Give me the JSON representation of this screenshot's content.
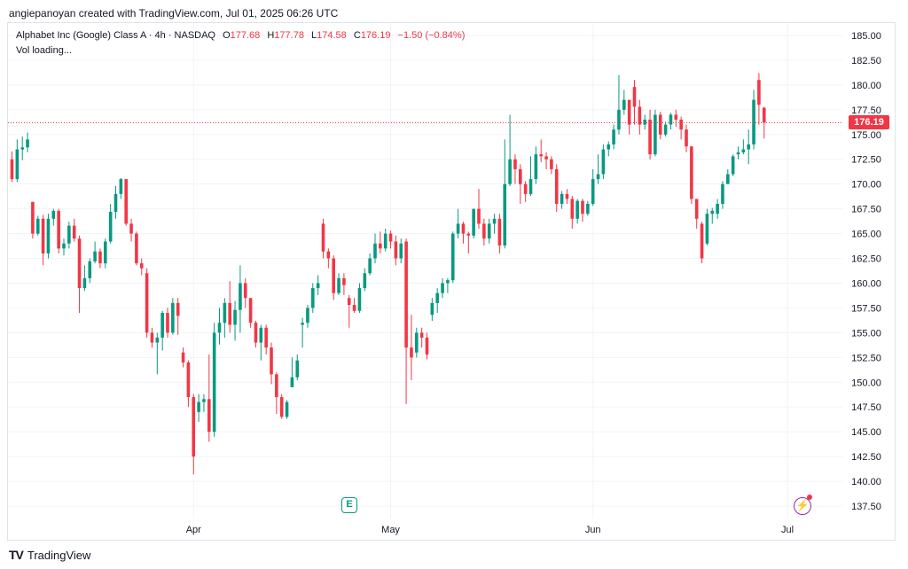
{
  "header": {
    "credit": "angiepanoyan created with TradingView.com, Jul 01, 2025 06:26 UTC"
  },
  "legend": {
    "symbol": "Alphabet Inc (Google) Class A · 4h · NASDAQ",
    "o_label": "O",
    "o_value": "177.68",
    "h_label": "H",
    "h_value": "177.78",
    "l_label": "L",
    "l_value": "174.58",
    "c_label": "C",
    "c_value": "176.19",
    "change": "−1.50 (−0.84%)",
    "vol": "Vol loading..."
  },
  "last_price": "176.19",
  "events": {
    "earnings_icon": "E",
    "flash_icon": "lightning-icon"
  },
  "footer": {
    "brand": "TradingView",
    "logo": "TV"
  },
  "colors": {
    "up": "#089981",
    "down": "#f23645",
    "grid": "#f0f3fa",
    "text": "#131722"
  },
  "chart_data": {
    "type": "candlestick",
    "ylim": [
      136.25,
      186.25
    ],
    "y_ticks": [
      "185.00",
      "182.50",
      "180.00",
      "177.50",
      "175.00",
      "172.50",
      "170.00",
      "167.50",
      "165.00",
      "162.50",
      "160.00",
      "157.50",
      "155.00",
      "152.50",
      "150.00",
      "147.50",
      "145.00",
      "142.50",
      "140.00",
      "137.50"
    ],
    "x_ticks": [
      {
        "label": "Apr",
        "index": 35
      },
      {
        "label": "May",
        "index": 73
      },
      {
        "label": "Jun",
        "index": 112
      },
      {
        "label": "Jul",
        "index": 149.5
      }
    ],
    "last_price": 176.19,
    "candles": [
      [
        172.5,
        170.5,
        173.3,
        170.2
      ],
      [
        170.5,
        173.5,
        174.5,
        170.2
      ],
      [
        173.5,
        173.7,
        174.8,
        172.4
      ],
      [
        173.7,
        174.5,
        175.2,
        173.2
      ],
      [
        168.2,
        165.0,
        168.2,
        164.5
      ],
      [
        165.0,
        166.5,
        166.8,
        164.8
      ],
      [
        166.5,
        163.0,
        166.9,
        161.8
      ],
      [
        163.0,
        166.5,
        167.0,
        162.5
      ],
      [
        166.5,
        167.3,
        167.5,
        165.8
      ],
      [
        167.3,
        163.5,
        167.5,
        163.0
      ],
      [
        163.5,
        164.0,
        164.5,
        162.8
      ],
      [
        164.0,
        165.8,
        166.2,
        163.5
      ],
      [
        165.8,
        164.5,
        166.5,
        164.2
      ],
      [
        164.5,
        159.5,
        164.8,
        157.0
      ],
      [
        159.5,
        160.5,
        161.8,
        159.2
      ],
      [
        160.5,
        162.2,
        162.5,
        160.0
      ],
      [
        162.2,
        163.2,
        164.2,
        162.0
      ],
      [
        163.2,
        162.0,
        163.5,
        161.5
      ],
      [
        162.0,
        164.2,
        164.5,
        161.5
      ],
      [
        164.2,
        167.2,
        168.0,
        164.0
      ],
      [
        167.2,
        169.0,
        169.8,
        166.5
      ],
      [
        169.0,
        170.5,
        170.6,
        168.5
      ],
      [
        170.5,
        166.0,
        170.5,
        165.8
      ],
      [
        166.0,
        165.0,
        166.5,
        164.2
      ],
      [
        165.0,
        162.0,
        165.2,
        161.8
      ],
      [
        162.0,
        161.5,
        162.5,
        160.8
      ],
      [
        161.0,
        155.0,
        161.5,
        154.5
      ],
      [
        155.0,
        154.0,
        155.5,
        153.5
      ],
      [
        154.0,
        154.5,
        155.0,
        150.8
      ],
      [
        154.5,
        157.0,
        157.2,
        153.2
      ],
      [
        157.0,
        155.0,
        157.5,
        154.5
      ],
      [
        155.0,
        158.0,
        158.5,
        154.8
      ],
      [
        158.0,
        156.7,
        158.5,
        154.8
      ],
      [
        153.0,
        152.0,
        153.5,
        151.5
      ],
      [
        152.0,
        148.5,
        152.2,
        147.5
      ],
      [
        148.5,
        142.5,
        148.8,
        140.7
      ],
      [
        147.0,
        148.0,
        148.8,
        146.0
      ],
      [
        148.0,
        148.3,
        148.8,
        147.0
      ],
      [
        148.3,
        145.0,
        152.8,
        144.0
      ],
      [
        145.0,
        155.0,
        156.0,
        144.5
      ],
      [
        155.0,
        156.0,
        157.5,
        153.8
      ],
      [
        156.0,
        158.0,
        158.5,
        154.5
      ],
      [
        158.0,
        155.8,
        160.2,
        155.0
      ],
      [
        155.8,
        157.3,
        158.2,
        154.2
      ],
      [
        157.3,
        160.0,
        161.8,
        155.0
      ],
      [
        160.0,
        158.5,
        160.5,
        157.5
      ],
      [
        158.5,
        156.0,
        158.5,
        155.5
      ],
      [
        156.0,
        154.0,
        156.2,
        153.5
      ],
      [
        154.0,
        155.5,
        155.8,
        152.2
      ],
      [
        155.5,
        153.5,
        155.8,
        152.8
      ],
      [
        153.5,
        150.8,
        154.0,
        149.8
      ],
      [
        150.8,
        148.5,
        151.0,
        146.8
      ],
      [
        148.5,
        146.5,
        148.8,
        146.3
      ],
      [
        146.5,
        148.0,
        148.2,
        146.3
      ],
      [
        149.5,
        150.5,
        152.5,
        149.5
      ],
      [
        150.5,
        152.2,
        152.8,
        150.2
      ],
      [
        155.8,
        156.0,
        156.5,
        153.5
      ],
      [
        156.0,
        157.5,
        157.8,
        155.5
      ],
      [
        157.5,
        159.5,
        160.0,
        157.0
      ],
      [
        159.5,
        160.0,
        160.8,
        158.8
      ],
      [
        166.0,
        163.2,
        166.5,
        162.5
      ],
      [
        163.2,
        162.5,
        163.5,
        161.5
      ],
      [
        162.5,
        159.0,
        162.8,
        158.3
      ],
      [
        159.0,
        160.5,
        161.0,
        158.8
      ],
      [
        160.5,
        159.8,
        161.0,
        158.8
      ],
      [
        158.5,
        157.8,
        158.8,
        155.5
      ],
      [
        157.8,
        157.2,
        158.5,
        157.0
      ],
      [
        157.2,
        159.5,
        160.0,
        157.0
      ],
      [
        159.5,
        161.0,
        161.5,
        159.2
      ],
      [
        161.0,
        162.5,
        163.0,
        160.8
      ],
      [
        162.5,
        164.0,
        165.0,
        162.0
      ],
      [
        164.0,
        163.5,
        165.2,
        163.0
      ],
      [
        163.5,
        165.0,
        165.5,
        163.2
      ],
      [
        165.0,
        164.2,
        165.3,
        163.5
      ],
      [
        164.2,
        162.5,
        164.8,
        161.8
      ],
      [
        162.5,
        164.0,
        164.5,
        162.0
      ],
      [
        164.2,
        153.5,
        164.5,
        147.8
      ],
      [
        153.5,
        152.5,
        156.8,
        150.2
      ],
      [
        153.0,
        155.0,
        155.5,
        152.5
      ],
      [
        155.0,
        154.5,
        155.5,
        153.5
      ],
      [
        154.5,
        152.8,
        155.0,
        152.3
      ],
      [
        156.8,
        158.0,
        158.5,
        156.2
      ],
      [
        158.0,
        159.0,
        159.5,
        157.0
      ],
      [
        159.0,
        160.0,
        160.5,
        158.5
      ],
      [
        160.0,
        160.3,
        160.5,
        159.0
      ],
      [
        160.3,
        165.0,
        165.2,
        160.0
      ],
      [
        165.0,
        166.0,
        167.5,
        164.5
      ],
      [
        166.0,
        165.0,
        166.2,
        164.0
      ],
      [
        165.0,
        164.8,
        165.2,
        163.0
      ],
      [
        164.8,
        167.5,
        167.5,
        164.5
      ],
      [
        167.5,
        166.0,
        169.5,
        165.5
      ],
      [
        166.0,
        164.5,
        166.5,
        163.8
      ],
      [
        164.5,
        166.0,
        166.5,
        164.0
      ],
      [
        166.0,
        166.5,
        167.0,
        165.0
      ],
      [
        166.5,
        163.8,
        167.0,
        163.0
      ],
      [
        163.8,
        170.0,
        174.5,
        163.5
      ],
      [
        170.0,
        172.5,
        177.0,
        169.8
      ],
      [
        172.5,
        171.5,
        173.0,
        170.0
      ],
      [
        171.5,
        170.0,
        172.0,
        168.0
      ],
      [
        170.0,
        169.0,
        170.3,
        168.2
      ],
      [
        169.0,
        170.5,
        172.8,
        168.8
      ],
      [
        170.5,
        173.0,
        173.8,
        170.0
      ],
      [
        173.0,
        172.8,
        174.5,
        172.2
      ],
      [
        172.8,
        172.5,
        173.2,
        171.5
      ],
      [
        172.5,
        171.5,
        172.8,
        171.0
      ],
      [
        171.5,
        168.0,
        172.0,
        167.2
      ],
      [
        168.0,
        169.0,
        169.3,
        167.5
      ],
      [
        169.0,
        168.5,
        169.5,
        168.0
      ],
      [
        168.5,
        166.5,
        168.8,
        165.5
      ],
      [
        166.5,
        168.3,
        168.5,
        166.0
      ],
      [
        168.3,
        167.0,
        168.5,
        166.2
      ],
      [
        167.0,
        168.0,
        168.3,
        166.8
      ],
      [
        168.0,
        170.5,
        171.5,
        167.8
      ],
      [
        170.5,
        171.0,
        173.0,
        170.0
      ],
      [
        171.0,
        173.5,
        174.0,
        170.5
      ],
      [
        173.5,
        174.0,
        174.3,
        172.8
      ],
      [
        174.0,
        175.5,
        176.0,
        173.5
      ],
      [
        175.5,
        177.5,
        181.0,
        175.0
      ],
      [
        177.5,
        178.5,
        179.5,
        177.0
      ],
      [
        178.5,
        176.0,
        178.5,
        175.0
      ],
      [
        179.8,
        177.8,
        180.5,
        176.0
      ],
      [
        177.8,
        176.0,
        178.5,
        175.0
      ],
      [
        176.0,
        176.5,
        177.0,
        175.5
      ],
      [
        176.5,
        173.0,
        177.5,
        172.5
      ],
      [
        173.0,
        177.0,
        177.5,
        172.8
      ],
      [
        177.0,
        175.0,
        177.3,
        174.5
      ],
      [
        175.0,
        176.0,
        176.3,
        174.8
      ],
      [
        176.0,
        177.0,
        177.2,
        175.5
      ],
      [
        177.0,
        176.5,
        177.5,
        175.8
      ],
      [
        176.5,
        175.5,
        176.8,
        174.5
      ],
      [
        175.5,
        173.8,
        176.0,
        173.2
      ],
      [
        173.8,
        168.5,
        173.8,
        168.0
      ],
      [
        168.5,
        166.5,
        168.5,
        165.5
      ],
      [
        166.0,
        162.5,
        166.2,
        162.0
      ],
      [
        164.0,
        167.0,
        167.5,
        163.8
      ],
      [
        167.0,
        167.3,
        167.6,
        166.0
      ],
      [
        167.0,
        168.0,
        168.5,
        166.5
      ],
      [
        168.0,
        170.0,
        170.3,
        167.5
      ],
      [
        170.0,
        171.0,
        171.5,
        170.0
      ],
      [
        171.0,
        172.8,
        173.0,
        170.8
      ],
      [
        173.0,
        173.2,
        173.8,
        172.5
      ],
      [
        173.2,
        173.5,
        174.5,
        173.0
      ],
      [
        173.5,
        174.0,
        175.5,
        172.0
      ],
      [
        174.0,
        178.5,
        179.5,
        173.5
      ],
      [
        180.5,
        178.0,
        181.2,
        176.0
      ],
      [
        177.7,
        176.2,
        177.8,
        174.6
      ]
    ]
  }
}
